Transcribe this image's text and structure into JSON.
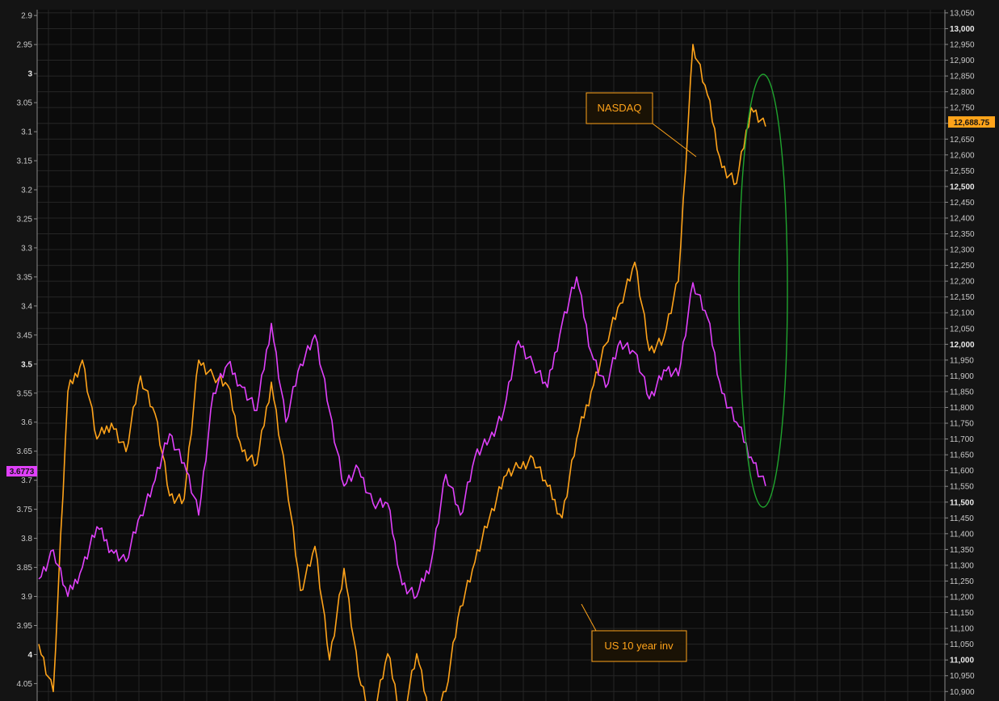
{
  "colors": {
    "background": "#141414",
    "plot_background": "#0b0b0b",
    "grid": "#262626",
    "nasdaq": "#ffa31a",
    "us10y": "#e040fb",
    "highlight_ellipse": "#1fa32e",
    "annotation": "#ffa31a"
  },
  "annotations": {
    "nasdaq_label": "NASDAQ",
    "us10y_label": "US 10 year inv"
  },
  "badges": {
    "nasdaq_last": "12,688.75",
    "us10y_last": "3.6773"
  },
  "chart_data": {
    "type": "line",
    "title": "",
    "xlabel": "",
    "left_axis": {
      "ylabel": "",
      "inverted": true,
      "ylim": [
        2.89,
        4.08
      ],
      "ticks": [
        2.9,
        2.95,
        3,
        3.05,
        3.1,
        3.15,
        3.2,
        3.25,
        3.3,
        3.35,
        3.4,
        3.45,
        3.5,
        3.55,
        3.6,
        3.65,
        3.7,
        3.75,
        3.8,
        3.85,
        3.9,
        3.95,
        4,
        4.05
      ],
      "tick_labels": [
        "2.9",
        "2.95",
        "3",
        "3.05",
        "3.1",
        "3.15",
        "3.2",
        "3.25",
        "3.3",
        "3.35",
        "3.4",
        "3.45",
        "3.5",
        "3.55",
        "3.6",
        "3.65",
        "3.7",
        "3.75",
        "3.8",
        "3.85",
        "3.9",
        "3.95",
        "4",
        "4.05"
      ],
      "major_labels": [
        "3",
        "3.5",
        "4"
      ]
    },
    "right_axis": {
      "ylabel": "",
      "ylim": [
        10870,
        13060
      ],
      "ticks": [
        13050,
        13000,
        12950,
        12900,
        12850,
        12800,
        12750,
        12700,
        12650,
        12600,
        12550,
        12500,
        12450,
        12400,
        12350,
        12300,
        12250,
        12200,
        12150,
        12100,
        12050,
        12000,
        11950,
        11900,
        11850,
        11800,
        11750,
        11700,
        11650,
        11600,
        11550,
        11500,
        11450,
        11400,
        11350,
        11300,
        11250,
        11200,
        11150,
        11100,
        11050,
        11000,
        10950,
        10900
      ],
      "tick_labels": [
        "13,050",
        "13,000",
        "12,950",
        "12,900",
        "12,850",
        "12,800",
        "12,750",
        "12,700",
        "12,650",
        "12,600",
        "12,550",
        "12,500",
        "12,450",
        "12,400",
        "12,350",
        "12,300",
        "12,250",
        "12,200",
        "12,150",
        "12,100",
        "12,050",
        "12,000",
        "11,950",
        "11,900",
        "11,850",
        "11,800",
        "11,750",
        "11,700",
        "11,650",
        "11,600",
        "11,550",
        "11,500",
        "11,450",
        "11,400",
        "11,350",
        "11,300",
        "11,250",
        "11,200",
        "11,150",
        "11,100",
        "11,050",
        "11,000",
        "10,950",
        "10,900"
      ],
      "major_labels": [
        "13,000",
        "12,500",
        "12,000",
        "11,500",
        "11,000"
      ]
    },
    "x": [
      0,
      2,
      4,
      6,
      8,
      10,
      12,
      14,
      16,
      18,
      20,
      22,
      24,
      26,
      28,
      30,
      32,
      34,
      36,
      38,
      40,
      42,
      44,
      46,
      48,
      50,
      52,
      54,
      56,
      58,
      60,
      62,
      64,
      66,
      68,
      70,
      72,
      74,
      76,
      78,
      80,
      82,
      84,
      86,
      88,
      90,
      92,
      94,
      96,
      98,
      100
    ],
    "grid": true,
    "series": [
      {
        "name": "NASDAQ",
        "axis": "right",
        "values": [
          11050,
          10900,
          11850,
          11950,
          11700,
          11750,
          11660,
          11900,
          11780,
          11520,
          11510,
          11950,
          11900,
          11870,
          11660,
          11620,
          11880,
          11580,
          11220,
          11360,
          11000,
          11290,
          10950,
          10820,
          11020,
          10810,
          11020,
          10800,
          10900,
          11170,
          11310,
          11450,
          11580,
          11610,
          11640,
          11550,
          11450,
          11700,
          11850,
          12000,
          12130,
          12260,
          11980,
          12020,
          12200,
          12950,
          12790,
          12560,
          12510,
          12750,
          12690
        ]
      },
      {
        "name": "US 10 year inv",
        "axis": "left",
        "values": [
          3.87,
          3.82,
          3.9,
          3.85,
          3.78,
          3.82,
          3.84,
          3.76,
          3.7,
          3.62,
          3.67,
          3.76,
          3.55,
          3.5,
          3.54,
          3.58,
          3.43,
          3.6,
          3.5,
          3.45,
          3.58,
          3.71,
          3.68,
          3.74,
          3.74,
          3.88,
          3.9,
          3.84,
          3.69,
          3.76,
          3.66,
          3.63,
          3.58,
          3.46,
          3.5,
          3.54,
          3.43,
          3.35,
          3.48,
          3.54,
          3.46,
          3.48,
          3.56,
          3.51,
          3.52,
          3.36,
          3.42,
          3.55,
          3.6,
          3.66,
          3.71
        ]
      }
    ]
  }
}
